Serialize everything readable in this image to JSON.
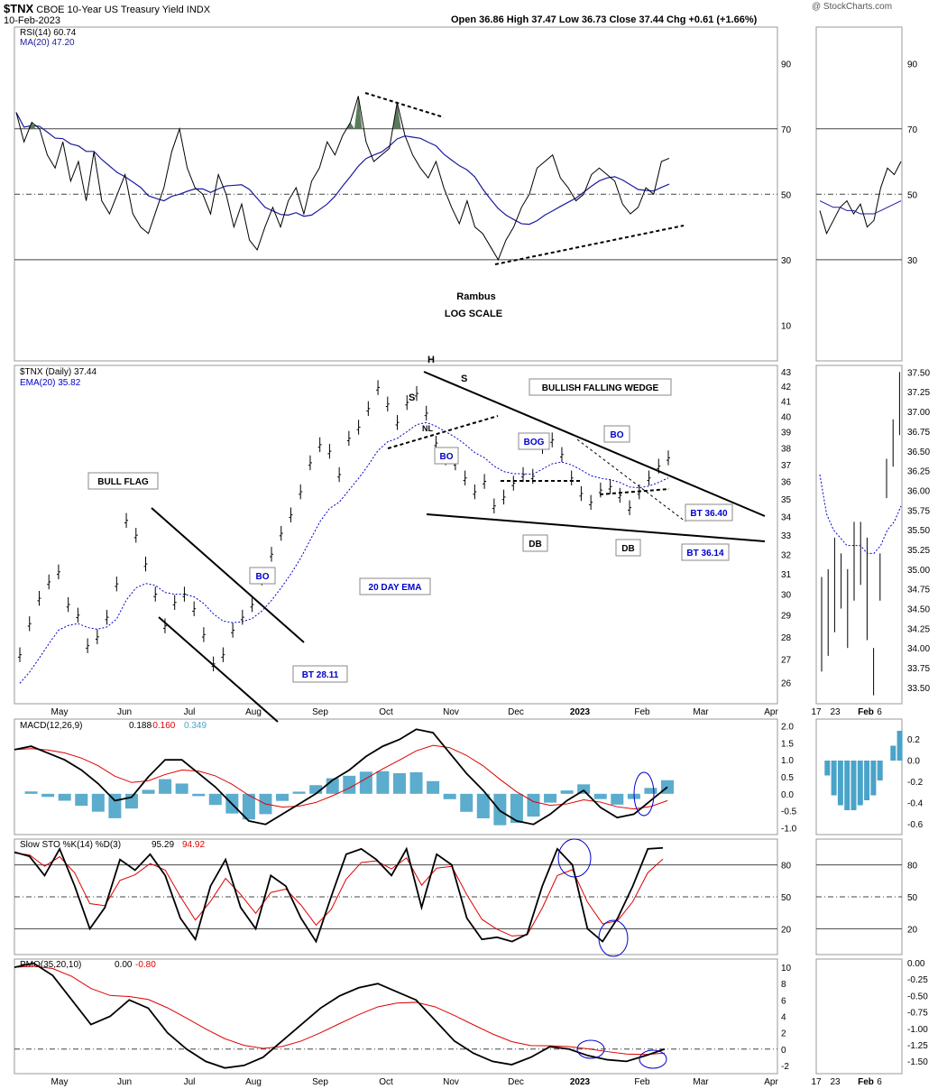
{
  "header": {
    "symbol": "$TNX",
    "name": "CBOE 10-Year US Treasury Yield INDX",
    "date": "10-Feb-2023",
    "ohlc": "Open 36.86   High 37.47   Low 36.73   Close 37.44   Chg +0.61 (+1.66%)",
    "watermark": "@ StockCharts.com"
  },
  "colors": {
    "price": "#000000",
    "ema": "#0000cc",
    "rsi_ma": "#1a1aa0",
    "macd_signal": "#dd0000",
    "histogram": "#4aa3c8",
    "rsi_fill": "#5b7a5b",
    "annot_blue": "#0000cc"
  },
  "chart_data": [
    {
      "type": "line",
      "panel": "rsi",
      "title": "RSI(14) 60.74",
      "legend2": "MA(20) 47.20",
      "ylim": [
        0,
        100
      ],
      "yticks": [
        10,
        30,
        50,
        70,
        90
      ],
      "ref_lines": [
        30,
        50,
        70
      ],
      "series": [
        {
          "name": "RSI(14)",
          "values": [
            75,
            66,
            72,
            70,
            62,
            58,
            66,
            54,
            60,
            48,
            63,
            48,
            44,
            50,
            56,
            44,
            40,
            38,
            45,
            52,
            63,
            70,
            58,
            52,
            50,
            44,
            56,
            50,
            40,
            47,
            36,
            33,
            40,
            46,
            40,
            48,
            52,
            44,
            54,
            58,
            66,
            62,
            68,
            72,
            80,
            66,
            60,
            62,
            64,
            78,
            68,
            62,
            58,
            55,
            60,
            52,
            46,
            41,
            48,
            40,
            38,
            34,
            30,
            36,
            40,
            46,
            50,
            58,
            60,
            62,
            55,
            52,
            48,
            50,
            56,
            58,
            56,
            54,
            47,
            44,
            46,
            52,
            50,
            60,
            61
          ],
          "values_alt": []
        },
        {
          "name": "MA(20)",
          "values": []
        }
      ],
      "annotations": [
        "Rambus",
        "LOG SCALE"
      ]
    },
    {
      "type": "line",
      "panel": "price",
      "title": "$TNX (Daily) 37.44",
      "legend2": "EMA(20) 35.82",
      "ylim": [
        25,
        43
      ],
      "yticks": [
        26,
        27,
        28,
        29,
        30,
        31,
        32,
        33,
        34,
        35,
        36,
        37,
        38,
        39,
        40,
        41,
        42,
        43
      ],
      "x_labels": [
        "May",
        "Jun",
        "Jul",
        "Aug",
        "Sep",
        "Oct",
        "Nov",
        "Dec",
        "2023",
        "Feb",
        "Mar",
        "Apr"
      ],
      "series": [
        {
          "name": "$TNX",
          "values": [
            27.2,
            28.6,
            29.8,
            30.6,
            31.1,
            29.5,
            29.0,
            27.6,
            28.0,
            28.9,
            30.5,
            33.8,
            33.0,
            31.5,
            30.0,
            28.5,
            29.6,
            30.0,
            29.3,
            28.1,
            26.8,
            27.2,
            28.3,
            28.9,
            29.5,
            30.8,
            32.0,
            33.1,
            34.1,
            35.4,
            37.1,
            38.2,
            37.8,
            36.4,
            38.6,
            39.3,
            40.5,
            41.9,
            40.8,
            39.6,
            40.9,
            41.5,
            40.2,
            38.3,
            37.4,
            37.1,
            36.2,
            35.4,
            36.0,
            34.6,
            35.1,
            35.9,
            36.4,
            36.3,
            38.1,
            38.5,
            37.6,
            36.2,
            35.3,
            34.8,
            35.5,
            35.7,
            35.2,
            34.5,
            35.4,
            36.2,
            36.9,
            37.4
          ],
          "values_alt": []
        },
        {
          "name": "EMA(20)",
          "values": []
        }
      ],
      "annotations": [
        "BULL FLAG",
        "BO",
        "BT 28.11",
        "20 DAY EMA",
        "S",
        "H",
        "S",
        "NL",
        "BO",
        "BOG",
        "BULLISH FALLING WEDGE",
        "BO",
        "DB",
        "DB",
        "BT 36.40",
        "BT 36.14"
      ]
    },
    {
      "type": "line",
      "panel": "macd",
      "title": "MACD(12,26,9)",
      "values_text": [
        "0.188",
        "-0.160",
        "0.349"
      ],
      "ylim": [
        -1.2,
        2.2
      ],
      "yticks": [
        -1.0,
        -0.5,
        0.0,
        0.5,
        1.0,
        1.5,
        2.0
      ]
    },
    {
      "type": "line",
      "panel": "sto",
      "title": "Slow STO %K(14) %D(3)",
      "values_text": [
        "95.29",
        "94.92"
      ],
      "ylim": [
        0,
        100
      ],
      "yticks": [
        20,
        50,
        80
      ],
      "ref_lines": [
        20,
        50,
        80
      ]
    },
    {
      "type": "line",
      "panel": "pmo",
      "title": "PMO(35,20,10)",
      "values_text": [
        "0.00",
        "-0.80"
      ],
      "ylim": [
        -3,
        11
      ],
      "yticks": [
        -2,
        0,
        2,
        4,
        6,
        8,
        10
      ]
    },
    {
      "type": "line",
      "panel": "inset",
      "x_labels": [
        "17",
        "23",
        "Feb",
        "6"
      ],
      "price_yticks": [
        "37.50",
        "37.25",
        "37.00",
        "36.75",
        "36.50",
        "36.25",
        "36.00",
        "35.75",
        "35.50",
        "35.25",
        "35.00",
        "34.75",
        "34.50",
        "34.25",
        "34.00",
        "33.75",
        "33.50"
      ],
      "macd_yticks": [
        "0.2",
        "0.0",
        "-0.2",
        "-0.4",
        "-0.6"
      ],
      "sto_yticks": [
        "80",
        "50",
        "20"
      ],
      "pmo_yticks": [
        "0.00",
        "-0.25",
        "-0.50",
        "-0.75",
        "-1.00",
        "-1.25",
        "-1.50"
      ],
      "rsi_yticks": [
        "90",
        "70",
        "50",
        "30"
      ]
    }
  ]
}
